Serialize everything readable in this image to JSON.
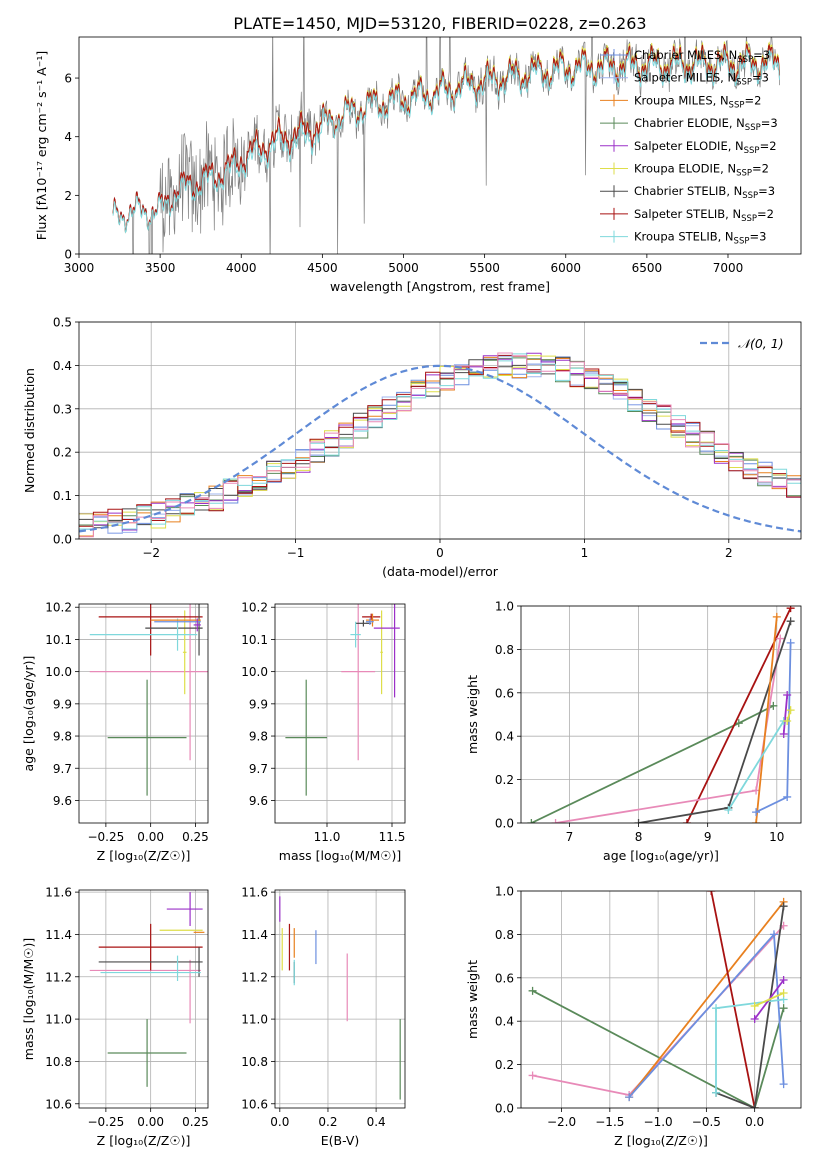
{
  "figure_title": "PLATE=1450, MJD=53120, FIBERID=0228, z=0.263",
  "colors": {
    "Chabrier MILES": "#6c8fdf",
    "Salpeter MILES": "#9fb4ee",
    "Kroupa MILES": "#e8801f",
    "Chabrier ELODIE": "#5a8a5a",
    "Salpeter ELODIE": "#9b30c8",
    "Kroupa ELODIE": "#dede4a",
    "Chabrier STELIB": "#4a4a4a",
    "Salpeter STELIB": "#a81212",
    "Kroupa STELIB": "#7fd8dc",
    "pink": "#e88ab8",
    "data": "#808080",
    "normal": "#5f8ad6"
  },
  "chart_data": [
    {
      "id": "spectrum",
      "type": "line",
      "xlabel": "wavelength [Angstrom, rest frame]",
      "ylabel": "Flux [fλ10⁻¹⁷ erg cm⁻² s⁻¹ A⁻¹]",
      "xlim": [
        3000,
        7450
      ],
      "ylim": [
        0,
        7.4
      ],
      "xticks": [
        3000,
        3500,
        4000,
        4500,
        5000,
        5500,
        6000,
        6500,
        7000
      ],
      "yticks": [
        0,
        2,
        4,
        6
      ],
      "legend_position": "top-right",
      "legend": [
        {
          "label": "Chabrier MILES, N",
          "sub": "SSP",
          "suffix": "=3",
          "color": "Chabrier MILES"
        },
        {
          "label": "Salpeter MILES, N",
          "sub": "SSP",
          "suffix": "=3",
          "color": "Salpeter MILES"
        },
        {
          "label": "Kroupa MILES, N",
          "sub": "SSP",
          "suffix": "=2",
          "color": "Kroupa MILES"
        },
        {
          "label": "Chabrier ELODIE, N",
          "sub": "SSP",
          "suffix": "=3",
          "color": "Chabrier ELODIE"
        },
        {
          "label": "Salpeter ELODIE, N",
          "sub": "SSP",
          "suffix": "=2",
          "color": "Salpeter ELODIE"
        },
        {
          "label": "Kroupa ELODIE, N",
          "sub": "SSP",
          "suffix": "=2",
          "color": "Kroupa ELODIE"
        },
        {
          "label": "Chabrier STELIB, N",
          "sub": "SSP",
          "suffix": "=3",
          "color": "Chabrier STELIB"
        },
        {
          "label": "Salpeter STELIB, N",
          "sub": "SSP",
          "suffix": "=2",
          "color": "Salpeter STELIB"
        },
        {
          "label": "Kroupa STELIB, N",
          "sub": "SSP",
          "suffix": "=3",
          "color": "Kroupa STELIB"
        }
      ],
      "model_trend": [
        [
          3210,
          1.2
        ],
        [
          3300,
          1.45
        ],
        [
          3500,
          1.5
        ],
        [
          3600,
          2.2
        ],
        [
          3800,
          2.6
        ],
        [
          3950,
          3.0
        ],
        [
          4000,
          3.3
        ],
        [
          4200,
          3.9
        ],
        [
          4400,
          4.2
        ],
        [
          4600,
          4.7
        ],
        [
          4800,
          5.1
        ],
        [
          5000,
          5.3
        ],
        [
          5200,
          5.5
        ],
        [
          5500,
          5.9
        ],
        [
          5800,
          6.2
        ],
        [
          6100,
          6.4
        ],
        [
          6400,
          6.45
        ],
        [
          6700,
          6.5
        ],
        [
          7000,
          6.5
        ],
        [
          7300,
          6.55
        ]
      ]
    },
    {
      "id": "residuals",
      "type": "histogram",
      "xlabel": "(data-model)/error",
      "ylabel": "Normed distribution",
      "xlim": [
        -2.5,
        2.5
      ],
      "ylim": [
        0,
        0.5
      ],
      "xticks": [
        -2,
        -1,
        0,
        1,
        2
      ],
      "yticks": [
        0.0,
        0.1,
        0.2,
        0.3,
        0.4,
        0.5
      ],
      "legend_position": "top-right",
      "legend_label": "𝒩(0, 1)",
      "bin_width": 0.1,
      "mean_profile": [
        0.03,
        0.035,
        0.04,
        0.045,
        0.05,
        0.055,
        0.065,
        0.075,
        0.085,
        0.095,
        0.11,
        0.12,
        0.135,
        0.15,
        0.165,
        0.18,
        0.2,
        0.22,
        0.24,
        0.26,
        0.28,
        0.3,
        0.32,
        0.34,
        0.355,
        0.37,
        0.38,
        0.39,
        0.395,
        0.4,
        0.4,
        0.4,
        0.395,
        0.39,
        0.38,
        0.37,
        0.355,
        0.34,
        0.32,
        0.3,
        0.28,
        0.26,
        0.24,
        0.22,
        0.2,
        0.18,
        0.165,
        0.15,
        0.135,
        0.12
      ]
    },
    {
      "id": "age-vs-Z",
      "type": "errorbar",
      "xlabel": "Z [log₁₀(Z/Z☉)]",
      "ylabel": "age [log₁₀(age/yr)]",
      "xlim": [
        -0.4,
        0.32
      ],
      "ylim": [
        9.53,
        10.21
      ],
      "xticks": [
        -0.25,
        0.0,
        0.25
      ],
      "xticklabels": [
        "−0.25",
        "0.00",
        "0.25"
      ],
      "yticks": [
        9.6,
        9.7,
        9.8,
        9.9,
        10.0,
        10.1,
        10.2
      ],
      "points": [
        {
          "color": "Chabrier ELODIE",
          "x": -0.02,
          "xerr": 0.22,
          "y": 9.795,
          "yerr": 0.18
        },
        {
          "color": "pink",
          "x": 0.0,
          "xerr": 0.34,
          "y": 10.0,
          "yerr": 0.0
        },
        {
          "color": "pink",
          "x": 0.22,
          "xerr": 0.0,
          "y": 9.995,
          "yerr": 0.27
        },
        {
          "color": "Kroupa ELODIE",
          "x": 0.19,
          "xerr": 0.01,
          "y": 10.06,
          "yerr": 0.13
        },
        {
          "color": "Salpeter STELIB",
          "x": 0.0,
          "xerr": 0.29,
          "y": 10.17,
          "yerr": 0.12
        },
        {
          "color": "Chabrier STELIB",
          "x": 0.13,
          "xerr": 0.16,
          "y": 10.135,
          "yerr": 0.0
        },
        {
          "color": "Chabrier STELIB",
          "x": 0.27,
          "xerr": 0.0,
          "y": 10.13,
          "yerr": 0.08
        },
        {
          "color": "Kroupa STELIB",
          "x": -0.04,
          "xerr": 0.3,
          "y": 10.115,
          "yerr": 0.0
        },
        {
          "color": "Kroupa STELIB",
          "x": 0.15,
          "xerr": 0.0,
          "y": 10.115,
          "yerr": 0.05
        },
        {
          "color": "Kroupa MILES",
          "x": 0.14,
          "xerr": 0.14,
          "y": 10.16,
          "yerr": 0.0
        },
        {
          "color": "Chabrier MILES",
          "x": 0.15,
          "xerr": 0.13,
          "y": 10.155,
          "yerr": 0.0
        },
        {
          "color": "Salpeter ELODIE",
          "x": 0.26,
          "xerr": 0.02,
          "y": 10.145,
          "yerr": 0.02
        }
      ]
    },
    {
      "id": "age-vs-mass",
      "type": "errorbar",
      "xlabel": "mass [log₁₀(M/M☉)]",
      "ylabel": "",
      "xlim": [
        10.6,
        11.6
      ],
      "ylim": [
        9.53,
        10.21
      ],
      "xticks": [
        11.0,
        11.5
      ],
      "xticklabels": [
        "11.0",
        "11.5"
      ],
      "yticks": [
        9.6,
        9.7,
        9.8,
        9.9,
        10.0,
        10.1,
        10.2
      ],
      "points": [
        {
          "color": "Chabrier ELODIE",
          "x": 10.84,
          "xerr": 0.16,
          "y": 9.795,
          "yerr": 0.18
        },
        {
          "color": "pink",
          "x": 11.24,
          "xerr": 0.13,
          "y": 10.0,
          "yerr": 0.0
        },
        {
          "color": "pink",
          "x": 11.24,
          "xerr": 0.0,
          "y": 9.995,
          "yerr": 0.27
        },
        {
          "color": "Kroupa ELODIE",
          "x": 11.42,
          "xerr": 0.01,
          "y": 10.06,
          "yerr": 0.13
        },
        {
          "color": "Salpeter ELODIE",
          "x": 11.52,
          "xerr": 0.0,
          "y": 10.07,
          "yerr": 0.15
        },
        {
          "color": "Salpeter ELODIE",
          "x": 11.46,
          "xerr": 0.1,
          "y": 10.135,
          "yerr": 0.0
        },
        {
          "color": "Salpeter STELIB",
          "x": 11.34,
          "xerr": 0.07,
          "y": 10.17,
          "yerr": 0.01
        },
        {
          "color": "Chabrier STELIB",
          "x": 11.28,
          "xerr": 0.06,
          "y": 10.15,
          "yerr": 0.01
        },
        {
          "color": "Kroupa STELIB",
          "x": 11.22,
          "xerr": 0.04,
          "y": 10.115,
          "yerr": 0.04
        },
        {
          "color": "Kroupa MILES",
          "x": 11.35,
          "xerr": 0.05,
          "y": 10.16,
          "yerr": 0.02
        },
        {
          "color": "Chabrier MILES",
          "x": 11.33,
          "xerr": 0.03,
          "y": 10.155,
          "yerr": 0.01
        }
      ]
    },
    {
      "id": "weight-vs-age",
      "type": "line",
      "xlabel": "age [log₁₀(age/yr)]",
      "ylabel": "mass weight",
      "xlim": [
        6.3,
        10.35
      ],
      "ylim": [
        0,
        1
      ],
      "xticks": [
        7,
        8,
        9,
        10
      ],
      "yticks": [
        0.0,
        0.2,
        0.4,
        0.6,
        0.8,
        1.0
      ],
      "series": [
        {
          "color": "Chabrier ELODIE",
          "points": [
            [
              6.45,
              0.0
            ],
            [
              9.45,
              0.46
            ],
            [
              9.95,
              0.54
            ]
          ]
        },
        {
          "color": "Salpeter STELIB",
          "points": [
            [
              8.7,
              0.0
            ],
            [
              10.2,
              0.99
            ]
          ]
        },
        {
          "color": "pink",
          "points": [
            [
              6.8,
              0.0
            ],
            [
              9.7,
              0.15
            ],
            [
              10.05,
              0.85
            ]
          ]
        },
        {
          "color": "Chabrier STELIB",
          "points": [
            [
              8.0,
              0.0
            ],
            [
              9.3,
              0.07
            ],
            [
              10.2,
              0.93
            ]
          ]
        },
        {
          "color": "Kroupa MILES",
          "points": [
            [
              9.7,
              0.0
            ],
            [
              10.0,
              0.95
            ]
          ]
        },
        {
          "color": "Chabrier MILES",
          "points": [
            [
              9.7,
              0.05
            ],
            [
              10.15,
              0.12
            ],
            [
              10.2,
              0.83
            ]
          ]
        },
        {
          "color": "Salpeter ELODIE",
          "points": [
            [
              10.1,
              0.41
            ],
            [
              10.15,
              0.59
            ]
          ]
        },
        {
          "color": "Kroupa STELIB",
          "points": [
            [
              9.3,
              0.06
            ],
            [
              10.1,
              0.47
            ]
          ]
        },
        {
          "color": "Kroupa ELODIE",
          "points": [
            [
              10.15,
              0.47
            ],
            [
              10.2,
              0.52
            ]
          ]
        }
      ]
    },
    {
      "id": "mass-vs-Z",
      "type": "errorbar",
      "xlabel": "Z [log₁₀(Z/Z☉)]",
      "ylabel": "mass [log₁₀(M/M☉)]",
      "xlim": [
        -0.4,
        0.32
      ],
      "ylim": [
        10.58,
        11.61
      ],
      "xticks": [
        -0.25,
        0.0,
        0.25
      ],
      "xticklabels": [
        "−0.25",
        "0.00",
        "0.25"
      ],
      "yticks": [
        10.6,
        10.8,
        11.0,
        11.2,
        11.4,
        11.6
      ],
      "points": [
        {
          "color": "Chabrier ELODIE",
          "x": -0.02,
          "xerr": 0.22,
          "y": 10.84,
          "yerr": 0.16
        },
        {
          "color": "pink",
          "x": -0.03,
          "xerr": 0.31,
          "y": 11.23,
          "yerr": 0.0
        },
        {
          "color": "pink",
          "x": 0.22,
          "xerr": 0.0,
          "y": 11.13,
          "yerr": 0.15
        },
        {
          "color": "Salpeter STELIB",
          "x": 0.0,
          "xerr": 0.29,
          "y": 11.34,
          "yerr": 0.11
        },
        {
          "color": "Chabrier STELIB",
          "x": 0.0,
          "xerr": 0.29,
          "y": 11.27,
          "yerr": 0.0
        },
        {
          "color": "Chabrier STELIB",
          "x": 0.27,
          "xerr": 0.0,
          "y": 11.27,
          "yerr": 0.07
        },
        {
          "color": "Kroupa STELIB",
          "x": 0.0,
          "xerr": 0.28,
          "y": 11.22,
          "yerr": 0.0
        },
        {
          "color": "Kroupa STELIB",
          "x": 0.15,
          "xerr": 0.0,
          "y": 11.24,
          "yerr": 0.06
        },
        {
          "color": "Salpeter ELODIE",
          "x": 0.19,
          "xerr": 0.1,
          "y": 11.52,
          "yerr": 0.0
        },
        {
          "color": "Salpeter ELODIE",
          "x": 0.22,
          "xerr": 0.0,
          "y": 11.52,
          "yerr": 0.08
        },
        {
          "color": "Kroupa ELODIE",
          "x": 0.17,
          "xerr": 0.12,
          "y": 11.42,
          "yerr": 0.0
        },
        {
          "color": "Kroupa MILES",
          "x": 0.27,
          "xerr": 0.03,
          "y": 11.41,
          "yerr": 0.0
        }
      ]
    },
    {
      "id": "mass-vs-ebv",
      "type": "errorbar",
      "xlabel": "E(B-V)",
      "ylabel": "",
      "xlim": [
        -0.02,
        0.52
      ],
      "ylim": [
        10.58,
        11.61
      ],
      "xticks": [
        0.0,
        0.2,
        0.4
      ],
      "xticklabels": [
        "0.0",
        "0.2",
        "0.4"
      ],
      "yticks": [
        10.6,
        10.8,
        11.0,
        11.2,
        11.4,
        11.6
      ],
      "points": [
        {
          "color": "Salpeter ELODIE",
          "x": 0.0,
          "xerr": 0.0,
          "y": 11.52,
          "yerr": 0.06
        },
        {
          "color": "Kroupa ELODIE",
          "x": 0.01,
          "xerr": 0.0,
          "y": 11.33,
          "yerr": 0.1
        },
        {
          "color": "Salpeter STELIB",
          "x": 0.04,
          "xerr": 0.0,
          "y": 11.34,
          "yerr": 0.11
        },
        {
          "color": "Kroupa MILES",
          "x": 0.06,
          "xerr": 0.0,
          "y": 11.36,
          "yerr": 0.07
        },
        {
          "color": "Chabrier STELIB",
          "x": 0.06,
          "xerr": 0.0,
          "y": 11.22,
          "yerr": 0.05
        },
        {
          "color": "Kroupa STELIB",
          "x": 0.06,
          "xerr": 0.0,
          "y": 11.22,
          "yerr": 0.06
        },
        {
          "color": "Chabrier MILES",
          "x": 0.15,
          "xerr": 0.0,
          "y": 11.34,
          "yerr": 0.08
        },
        {
          "color": "pink",
          "x": 0.28,
          "xerr": 0.0,
          "y": 11.15,
          "yerr": 0.16
        },
        {
          "color": "Chabrier ELODIE",
          "x": 0.5,
          "xerr": 0.0,
          "y": 10.81,
          "yerr": 0.19
        }
      ]
    },
    {
      "id": "weight-vs-Z",
      "type": "line",
      "xlabel": "Z [log₁₀(Z/Z☉)]",
      "ylabel": "mass weight",
      "xlim": [
        -2.42,
        0.48
      ],
      "ylim": [
        0,
        1
      ],
      "xticks": [
        -2.0,
        -1.5,
        -1.0,
        -0.5,
        0.0
      ],
      "xticklabels": [
        "−2.0",
        "−1.5",
        "−1.0",
        "−0.5",
        "0.0"
      ],
      "yticks": [
        0.0,
        0.2,
        0.4,
        0.6,
        0.8,
        1.0
      ],
      "series": [
        {
          "color": "Chabrier ELODIE",
          "points": [
            [
              -2.3,
              0.54
            ],
            [
              0.0,
              0.0
            ],
            [
              0.3,
              0.46
            ]
          ]
        },
        {
          "color": "pink",
          "points": [
            [
              -2.3,
              0.15
            ],
            [
              -1.3,
              0.06
            ],
            [
              0.3,
              0.84
            ]
          ]
        },
        {
          "color": "Kroupa MILES",
          "points": [
            [
              -1.3,
              0.05
            ],
            [
              0.3,
              0.95
            ]
          ]
        },
        {
          "color": "Chabrier MILES",
          "points": [
            [
              -1.3,
              0.05
            ],
            [
              0.2,
              0.8
            ],
            [
              0.3,
              0.11
            ]
          ]
        },
        {
          "color": "Salpeter STELIB",
          "points": [
            [
              -0.45,
              1.0
            ],
            [
              0.0,
              0.0
            ]
          ]
        },
        {
          "color": "Chabrier STELIB",
          "points": [
            [
              -0.4,
              0.07
            ],
            [
              0.0,
              0.0
            ],
            [
              0.3,
              0.93
            ]
          ]
        },
        {
          "color": "Kroupa STELIB",
          "points": [
            [
              -0.4,
              0.07
            ],
            [
              -0.4,
              0.46
            ],
            [
              0.3,
              0.5
            ]
          ]
        },
        {
          "color": "Salpeter ELODIE",
          "points": [
            [
              0.0,
              0.41
            ],
            [
              0.3,
              0.59
            ]
          ]
        },
        {
          "color": "Kroupa ELODIE",
          "points": [
            [
              0.0,
              0.47
            ],
            [
              0.3,
              0.53
            ]
          ]
        }
      ]
    }
  ]
}
